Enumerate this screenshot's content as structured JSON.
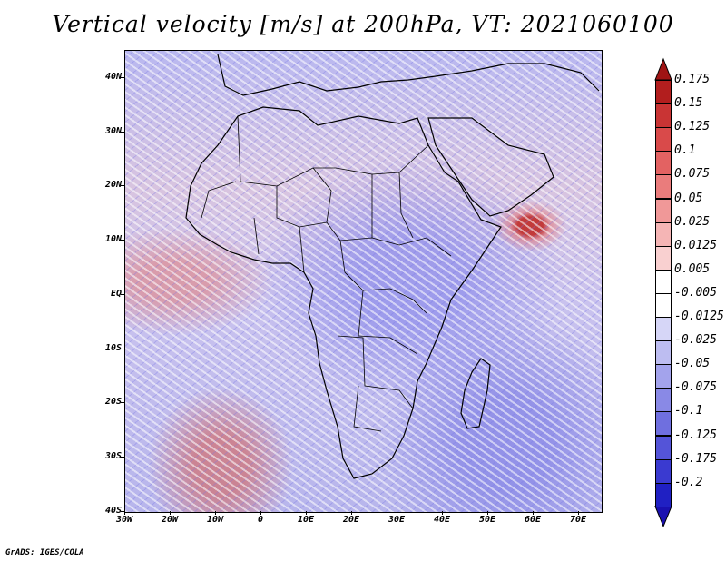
{
  "title": "Vertical velocity [m/s] at 200hPa, VT: 2021060100",
  "footer": "GrADS: IGES/COLA",
  "axes": {
    "lat_labels": [
      "40N",
      "30N",
      "20N",
      "10N",
      "EQ",
      "10S",
      "20S",
      "30S",
      "40S"
    ],
    "lat_values": [
      40,
      30,
      20,
      10,
      0,
      -10,
      -20,
      -30,
      -40
    ],
    "lon_labels": [
      "30W",
      "20W",
      "10W",
      "0",
      "10E",
      "20E",
      "30E",
      "40E",
      "50E",
      "60E",
      "70E"
    ],
    "lon_values": [
      -30,
      -20,
      -10,
      0,
      10,
      20,
      30,
      40,
      50,
      60,
      70
    ],
    "lat_range": [
      -40,
      45
    ],
    "lon_range": [
      -30,
      75
    ]
  },
  "colorbar": {
    "levels": [
      "0.175",
      "0.15",
      "0.125",
      "0.1",
      "0.075",
      "0.05",
      "0.025",
      "0.0125",
      "0.005",
      "-0.005",
      "-0.0125",
      "-0.025",
      "-0.05",
      "-0.075",
      "-0.1",
      "-0.125",
      "-0.175",
      "-0.2"
    ],
    "colors": [
      "#b21e1e",
      "#c93434",
      "#d94a4a",
      "#e36262",
      "#ea7c7c",
      "#f09898",
      "#f5b5b5",
      "#f9d0d0",
      "#ffffff",
      "#ffffff",
      "#d6d6f7",
      "#bdbdf1",
      "#a3a3ec",
      "#8989e6",
      "#6f6fdf",
      "#5454d8",
      "#3a3ad0",
      "#2020c3"
    ],
    "top_arrow_color": "#a01414",
    "bottom_arrow_color": "#1a10b0"
  }
}
